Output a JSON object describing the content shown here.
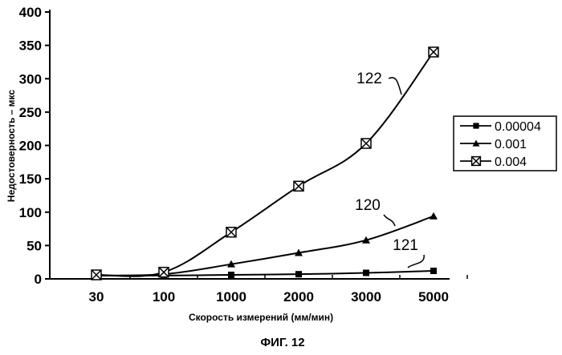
{
  "chart_data": {
    "type": "line",
    "categories": [
      "30",
      "100",
      "1000",
      "2000",
      "3000",
      "5000"
    ],
    "ylim": [
      0,
      400
    ],
    "yticks": [
      0,
      50,
      100,
      150,
      200,
      250,
      300,
      350,
      400
    ],
    "xlabel": "Скорость измерений (мм/мин)",
    "ylabel": "Недостоверность – мкс",
    "caption": "ФИГ. 12",
    "legend_position": "right",
    "grid": false,
    "series": [
      {
        "name": "0.00004",
        "marker": "filled-square",
        "values": [
          5,
          5,
          6,
          7,
          9,
          12
        ]
      },
      {
        "name": "0.001",
        "marker": "filled-triangle",
        "values": [
          5,
          7,
          22,
          39,
          58,
          94
        ]
      },
      {
        "name": "0.004",
        "marker": "boxed-x",
        "values": [
          6,
          10,
          70,
          139,
          203,
          340
        ]
      }
    ],
    "annotations": [
      {
        "text": "122",
        "series": 2
      },
      {
        "text": "120",
        "series": 1
      },
      {
        "text": "121",
        "series": 0
      }
    ]
  }
}
